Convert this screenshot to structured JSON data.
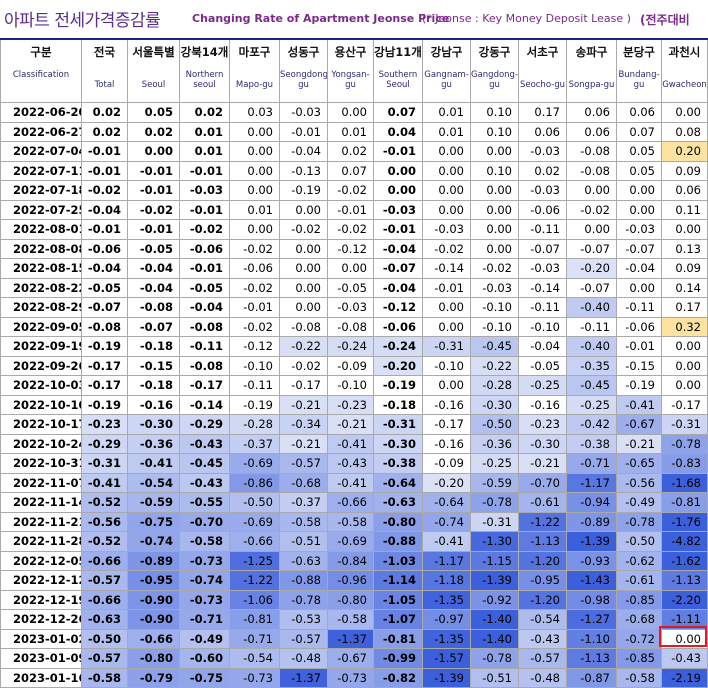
{
  "title": {
    "korean": "아파트 전세가격증감률",
    "english": "Changing Rate of Apartment Jeonse Price",
    "note": "(* Jeonse : Key Money Deposit Lease )",
    "right": "(전주대비"
  },
  "columns": [
    {
      "ko": "구분",
      "en": "Classification"
    },
    {
      "ko": "전국",
      "en": "Total"
    },
    {
      "ko": "서울특별",
      "en": "Seoul"
    },
    {
      "ko": "강북14개",
      "en": "Northern seoul"
    },
    {
      "ko": "마포구",
      "en": "Mapo-gu"
    },
    {
      "ko": "성동구",
      "en": "Seongdong-gu"
    },
    {
      "ko": "용산구",
      "en": "Yongsan-gu"
    },
    {
      "ko": "강남11개",
      "en": "Southern Seoul"
    },
    {
      "ko": "강남구",
      "en": "Gangnam-gu"
    },
    {
      "ko": "강동구",
      "en": "Gangdong-gu"
    },
    {
      "ko": "서초구",
      "en": "Seocho-gu"
    },
    {
      "ko": "송파구",
      "en": "Songpa-gu"
    },
    {
      "ko": "분당구",
      "en": "Bundang-gu"
    },
    {
      "ko": "과천시",
      "en": "Gwacheon"
    }
  ],
  "rows": [
    {
      "date": "2022-06-20",
      "values": [
        "0.02",
        "0.05",
        "0.02",
        "0.03",
        "-0.03",
        "0.00",
        "0.07",
        "0.01",
        "0.10",
        "0.17",
        "0.06",
        "0.06",
        "0.00"
      ]
    },
    {
      "date": "2022-06-27",
      "values": [
        "0.02",
        "0.02",
        "0.01",
        "0.00",
        "-0.01",
        "0.01",
        "0.04",
        "0.01",
        "0.10",
        "0.06",
        "0.06",
        "0.07",
        "0.08"
      ]
    },
    {
      "date": "2022-07-04",
      "values": [
        "-0.01",
        "0.00",
        "0.01",
        "0.00",
        "-0.04",
        "0.02",
        "-0.01",
        "0.00",
        "0.00",
        "-0.03",
        "-0.08",
        "0.05",
        "0.20"
      ]
    },
    {
      "date": "2022-07-11",
      "values": [
        "-0.01",
        "-0.01",
        "-0.01",
        "0.00",
        "-0.13",
        "0.07",
        "0.00",
        "0.00",
        "0.10",
        "0.02",
        "-0.08",
        "0.05",
        "0.09"
      ]
    },
    {
      "date": "2022-07-18",
      "values": [
        "-0.02",
        "-0.01",
        "-0.03",
        "0.00",
        "-0.19",
        "-0.02",
        "0.00",
        "0.00",
        "0.00",
        "-0.03",
        "0.00",
        "0.00",
        "0.06"
      ]
    },
    {
      "date": "2022-07-25",
      "values": [
        "-0.04",
        "-0.02",
        "-0.01",
        "0.01",
        "0.00",
        "-0.01",
        "-0.03",
        "0.00",
        "0.00",
        "-0.06",
        "-0.02",
        "0.00",
        "0.11"
      ]
    },
    {
      "date": "2022-08-01",
      "values": [
        "-0.01",
        "-0.01",
        "-0.02",
        "0.00",
        "-0.02",
        "-0.02",
        "-0.01",
        "-0.03",
        "0.00",
        "-0.11",
        "0.00",
        "-0.03",
        "0.00"
      ]
    },
    {
      "date": "2022-08-08",
      "values": [
        "-0.06",
        "-0.05",
        "-0.06",
        "-0.02",
        "0.00",
        "-0.12",
        "-0.04",
        "-0.02",
        "0.00",
        "-0.07",
        "-0.07",
        "-0.07",
        "0.13"
      ]
    },
    {
      "date": "2022-08-15",
      "values": [
        "-0.04",
        "-0.04",
        "-0.01",
        "-0.06",
        "0.00",
        "0.00",
        "-0.07",
        "-0.14",
        "-0.02",
        "-0.03",
        "-0.20",
        "-0.04",
        "0.09"
      ]
    },
    {
      "date": "2022-08-22",
      "values": [
        "-0.05",
        "-0.04",
        "-0.05",
        "-0.02",
        "0.00",
        "-0.05",
        "-0.04",
        "-0.01",
        "-0.03",
        "-0.14",
        "-0.07",
        "0.00",
        "0.14"
      ]
    },
    {
      "date": "2022-08-29",
      "values": [
        "-0.07",
        "-0.08",
        "-0.04",
        "-0.01",
        "0.00",
        "-0.03",
        "-0.12",
        "0.00",
        "-0.10",
        "-0.11",
        "-0.40",
        "-0.11",
        "0.17"
      ]
    },
    {
      "date": "2022-09-05",
      "values": [
        "-0.08",
        "-0.07",
        "-0.08",
        "-0.02",
        "-0.08",
        "-0.08",
        "-0.06",
        "0.00",
        "-0.10",
        "-0.10",
        "-0.11",
        "-0.06",
        "0.32"
      ]
    },
    {
      "date": "2022-09-19",
      "values": [
        "-0.19",
        "-0.18",
        "-0.11",
        "-0.12",
        "-0.22",
        "-0.24",
        "-0.24",
        "-0.31",
        "-0.45",
        "-0.04",
        "-0.40",
        "-0.01",
        "0.00"
      ]
    },
    {
      "date": "2022-09-26",
      "values": [
        "-0.17",
        "-0.15",
        "-0.08",
        "-0.10",
        "-0.02",
        "-0.09",
        "-0.20",
        "-0.10",
        "-0.22",
        "-0.05",
        "-0.35",
        "-0.15",
        "0.00"
      ]
    },
    {
      "date": "2022-10-03",
      "values": [
        "-0.17",
        "-0.18",
        "-0.17",
        "-0.11",
        "-0.17",
        "-0.10",
        "-0.19",
        "0.00",
        "-0.28",
        "-0.25",
        "-0.45",
        "-0.19",
        "0.00"
      ]
    },
    {
      "date": "2022-10-10",
      "values": [
        "-0.19",
        "-0.16",
        "-0.14",
        "-0.19",
        "-0.21",
        "-0.23",
        "-0.18",
        "-0.16",
        "-0.30",
        "-0.16",
        "-0.25",
        "-0.41",
        "-0.17"
      ]
    },
    {
      "date": "2022-10-17",
      "values": [
        "-0.23",
        "-0.30",
        "-0.29",
        "-0.28",
        "-0.34",
        "-0.21",
        "-0.31",
        "-0.17",
        "-0.50",
        "-0.23",
        "-0.42",
        "-0.67",
        "-0.31"
      ]
    },
    {
      "date": "2022-10-24",
      "values": [
        "-0.29",
        "-0.36",
        "-0.43",
        "-0.37",
        "-0.21",
        "-0.41",
        "-0.30",
        "-0.16",
        "-0.36",
        "-0.30",
        "-0.38",
        "-0.21",
        "-0.78"
      ]
    },
    {
      "date": "2022-10-31",
      "values": [
        "-0.31",
        "-0.41",
        "-0.45",
        "-0.69",
        "-0.57",
        "-0.43",
        "-0.38",
        "-0.09",
        "-0.25",
        "-0.21",
        "-0.71",
        "-0.65",
        "-0.83"
      ]
    },
    {
      "date": "2022-11-07",
      "values": [
        "-0.41",
        "-0.54",
        "-0.43",
        "-0.86",
        "-0.68",
        "-0.41",
        "-0.64",
        "-0.20",
        "-0.59",
        "-0.70",
        "-1.17",
        "-0.56",
        "-1.68"
      ]
    },
    {
      "date": "2022-11-14",
      "values": [
        "-0.52",
        "-0.59",
        "-0.55",
        "-0.50",
        "-0.37",
        "-0.66",
        "-0.63",
        "-0.64",
        "-0.78",
        "-0.61",
        "-0.94",
        "-0.49",
        "-0.81"
      ]
    },
    {
      "date": "2022-11-21",
      "values": [
        "-0.56",
        "-0.75",
        "-0.70",
        "-0.69",
        "-0.58",
        "-0.58",
        "-0.80",
        "-0.74",
        "-0.31",
        "-1.22",
        "-0.89",
        "-0.78",
        "-1.76"
      ]
    },
    {
      "date": "2022-11-28",
      "values": [
        "-0.52",
        "-0.74",
        "-0.58",
        "-0.66",
        "-0.51",
        "-0.69",
        "-0.88",
        "-0.41",
        "-1.30",
        "-1.13",
        "-1.39",
        "-0.50",
        "-4.82"
      ]
    },
    {
      "date": "2022-12-05",
      "values": [
        "-0.66",
        "-0.89",
        "-0.73",
        "-1.25",
        "-0.63",
        "-0.84",
        "-1.03",
        "-1.17",
        "-1.15",
        "-1.20",
        "-0.93",
        "-0.62",
        "-1.62"
      ]
    },
    {
      "date": "2022-12-12",
      "values": [
        "-0.57",
        "-0.95",
        "-0.74",
        "-1.22",
        "-0.88",
        "-0.96",
        "-1.14",
        "-1.18",
        "-1.39",
        "-0.95",
        "-1.43",
        "-0.61",
        "-1.13"
      ]
    },
    {
      "date": "2022-12-19",
      "values": [
        "-0.66",
        "-0.90",
        "-0.73",
        "-1.06",
        "-0.78",
        "-0.80",
        "-1.05",
        "-1.35",
        "-0.92",
        "-1.20",
        "-0.98",
        "-0.85",
        "-2.20"
      ]
    },
    {
      "date": "2022-12-26",
      "values": [
        "-0.63",
        "-0.90",
        "-0.71",
        "-0.81",
        "-0.53",
        "-0.58",
        "-1.07",
        "-0.97",
        "-1.40",
        "-0.54",
        "-1.27",
        "-0.68",
        "-1.11"
      ]
    },
    {
      "date": "2023-01-02",
      "values": [
        "-0.50",
        "-0.66",
        "-0.49",
        "-0.71",
        "-0.57",
        "-1.37",
        "-0.81",
        "-1.35",
        "-1.40",
        "-0.43",
        "-1.10",
        "-0.72",
        "0.00"
      ]
    },
    {
      "date": "2023-01-09",
      "values": [
        "-0.57",
        "-0.80",
        "-0.60",
        "-0.54",
        "-0.48",
        "-0.67",
        "-0.99",
        "-1.57",
        "-0.78",
        "-0.57",
        "-1.13",
        "-0.85",
        "-0.43"
      ]
    },
    {
      "date": "2023-01-16",
      "values": [
        "-0.58",
        "-0.79",
        "-0.75",
        "-0.73",
        "-1.37",
        "-0.73",
        "-0.82",
        "-1.39",
        "-0.51",
        "-0.48",
        "-0.87",
        "-0.58",
        "-2.19"
      ]
    }
  ],
  "colors": {
    "positive_highlight": "#fde3a0",
    "highlight_border": "#e01b1b",
    "header_border": "#1f1f80"
  }
}
